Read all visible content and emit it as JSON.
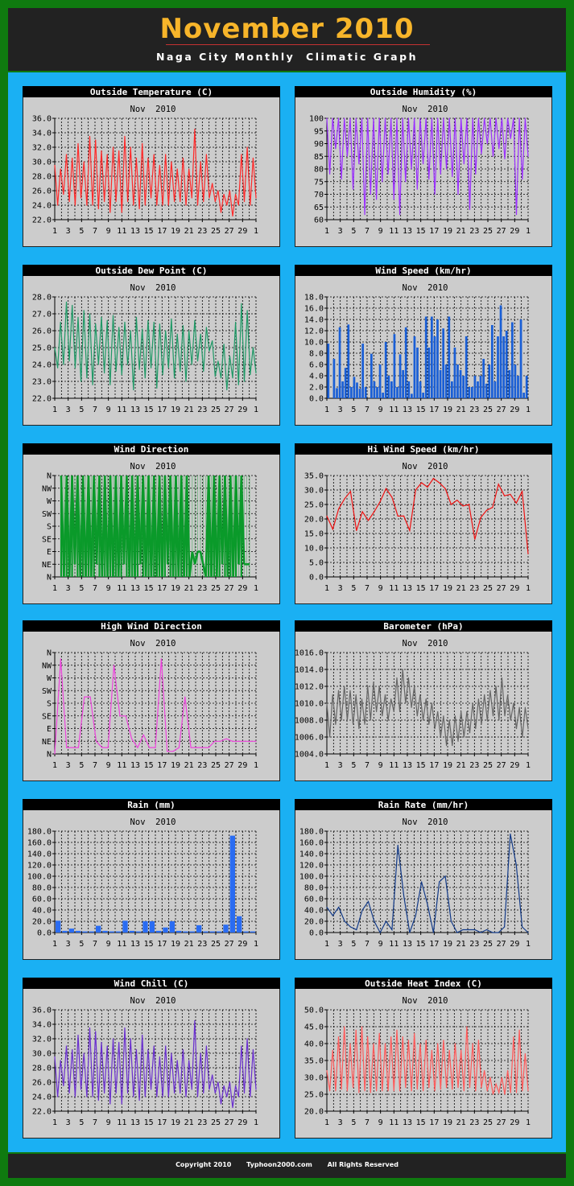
{
  "header": {
    "title": "November 2010",
    "subtitle": "Naga City Monthly  Climatic Graph"
  },
  "footer": {
    "copyright": "Copyright 2010",
    "site": "Typhoon2000.com",
    "rights": "All Rights Reserved"
  },
  "colors": {
    "background": "#0f7a0f",
    "panel_area": "#1ab0f3",
    "header_bg": "#222222",
    "title": "#f7b52a",
    "plot_bg": "#cccccc"
  },
  "chart_data": [
    {
      "id": "temperature",
      "type": "line",
      "title": "Outside Temperature (C)",
      "subtitle": "Nov  2010",
      "color": "#ff2a2a",
      "ylim": [
        22,
        36
      ],
      "ystep": 2,
      "ydec": 1,
      "xticks": [
        "1",
        "3",
        "5",
        "7",
        "9",
        "11",
        "13",
        "15",
        "17",
        "19",
        "21",
        "23",
        "25",
        "27",
        "29",
        "1"
      ],
      "values": [
        29.5,
        24,
        29,
        25.5,
        31,
        24.5,
        30.5,
        24,
        32.5,
        25,
        30,
        24,
        33.5,
        24,
        33,
        23.5,
        31.5,
        24.5,
        31,
        23,
        32,
        24.5,
        31.5,
        23,
        33.5,
        24.5,
        32,
        24,
        30.5,
        23.5,
        32.5,
        24,
        30.5,
        25,
        31,
        24,
        29.5,
        24,
        31,
        24,
        30,
        24.5,
        29,
        24.5,
        30.5,
        24,
        29,
        25,
        34.5,
        24,
        30,
        24.5,
        31,
        25,
        27,
        24.5,
        26,
        23,
        25.5,
        24,
        26,
        22.5,
        25.5,
        24,
        31,
        24.5,
        32,
        24,
        30.5,
        25
      ]
    },
    {
      "id": "humidity",
      "type": "line",
      "title": "Outside Humidity (%)",
      "subtitle": "Nov  2010",
      "color": "#9b30ff",
      "ylim": [
        60,
        100
      ],
      "ystep": 5,
      "ydec": 0,
      "xticks": [
        "1",
        "3",
        "5",
        "7",
        "9",
        "11",
        "13",
        "15",
        "17",
        "19",
        "21",
        "23",
        "25",
        "27",
        "29",
        "1"
      ],
      "values": [
        100,
        78,
        100,
        88,
        100,
        76,
        100,
        85,
        100,
        72,
        100,
        82,
        100,
        62,
        100,
        70,
        100,
        68,
        100,
        75,
        100,
        78,
        100,
        68,
        100,
        62,
        100,
        75,
        100,
        80,
        100,
        72,
        100,
        82,
        100,
        76,
        100,
        70,
        100,
        78,
        100,
        80,
        100,
        77,
        100,
        70,
        100,
        82,
        100,
        64,
        100,
        78,
        100,
        86,
        100,
        90,
        100,
        85,
        100,
        88,
        100,
        84,
        100,
        92,
        100,
        62,
        100,
        76,
        100,
        85
      ]
    },
    {
      "id": "dewpoint",
      "type": "line",
      "title": "Outside Dew Point (C)",
      "subtitle": "Nov  2010",
      "color": "#1f9966",
      "ylim": [
        22,
        28
      ],
      "ystep": 1,
      "ydec": 1,
      "xticks": [
        "1",
        "3",
        "5",
        "7",
        "9",
        "11",
        "13",
        "15",
        "17",
        "19",
        "21",
        "23",
        "25",
        "27",
        "29",
        "1"
      ],
      "values": [
        25,
        23.8,
        26.5,
        24,
        27.7,
        24.2,
        27.5,
        23.8,
        26.8,
        23,
        27.2,
        23.2,
        27,
        22.8,
        26.4,
        24,
        26.8,
        23.5,
        26.6,
        22.8,
        26.9,
        23.6,
        26.2,
        23.4,
        26.5,
        24,
        26,
        22.5,
        26.8,
        23.7,
        26.1,
        23.2,
        26.6,
        23.8,
        26.5,
        22.6,
        26.4,
        23.4,
        26,
        23.8,
        26.7,
        23.2,
        25.8,
        23.6,
        26.3,
        23,
        26,
        24,
        26.6,
        24.2,
        25.8,
        23.6,
        26.2,
        24.8,
        25.4,
        23.3,
        24.2,
        23.2,
        25.2,
        22.5,
        24.5,
        23.2,
        26.5,
        22.8,
        27.6,
        23,
        27.2,
        23.4,
        25,
        23.5
      ]
    },
    {
      "id": "windspeed",
      "type": "bar",
      "title": "Wind Speed (km/hr)",
      "subtitle": "Nov  2010",
      "color": "#1a5fd6",
      "ylim": [
        0,
        18
      ],
      "ystep": 2,
      "ydec": 1,
      "xticks": [
        "1",
        "3",
        "5",
        "7",
        "9",
        "11",
        "13",
        "15",
        "17",
        "19",
        "21",
        "23",
        "25",
        "27",
        "29",
        "1"
      ],
      "values": [
        9.7,
        0,
        7,
        1.8,
        12.6,
        3,
        5.4,
        13.1,
        2,
        3.8,
        2.8,
        1.7,
        9.7,
        2,
        0,
        7.9,
        3,
        2,
        6,
        1,
        10,
        4,
        3,
        11.4,
        2,
        7.8,
        5,
        12.6,
        3,
        0.8,
        11,
        9,
        3,
        1,
        14.5,
        9,
        14.5,
        11,
        14,
        5,
        12.4,
        6,
        14.5,
        3,
        9,
        6,
        5,
        4,
        11,
        2,
        2,
        4,
        3,
        4,
        7,
        2.6,
        6,
        13,
        3,
        11,
        16.5,
        11,
        12,
        5,
        13.5,
        6,
        4,
        14,
        1,
        4
      ]
    },
    {
      "id": "winddir",
      "type": "area",
      "title": "Wind Direction",
      "subtitle": "Nov  2010",
      "color": "#0a9a2a",
      "ylim": [
        0,
        8
      ],
      "yticklabels": [
        "N",
        "NE",
        "E",
        "SE",
        "S",
        "SW",
        "W",
        "NW",
        "N"
      ],
      "xticks": [
        "1",
        "3",
        "5",
        "7",
        "9",
        "11",
        "13",
        "15",
        "17",
        "19",
        "21",
        "23",
        "25",
        "27",
        "29",
        "1"
      ],
      "values": [
        8,
        0,
        8,
        0,
        8,
        1,
        8,
        0,
        8,
        0,
        8,
        0,
        8,
        1,
        8,
        0,
        8,
        0,
        8,
        0,
        8,
        0,
        8,
        1,
        8,
        0,
        8,
        0,
        8,
        1,
        8,
        0,
        8,
        0,
        8,
        0,
        8,
        0,
        8,
        1,
        8,
        0,
        8,
        0,
        8,
        0,
        8,
        0,
        2,
        1,
        2,
        2,
        1,
        0,
        8,
        0,
        8,
        0,
        8,
        1,
        8,
        0,
        8,
        0,
        8,
        1,
        8,
        1,
        1,
        1
      ],
      "end_index": 68
    },
    {
      "id": "hiwind",
      "type": "line",
      "title": "Hi Wind Speed (km/hr)",
      "subtitle": "Nov  2010",
      "color": "#ee1111",
      "ylim": [
        0,
        35
      ],
      "ystep": 5,
      "ydec": 1,
      "xticks": [
        "1",
        "3",
        "5",
        "7",
        "9",
        "11",
        "13",
        "15",
        "17",
        "19",
        "21",
        "23",
        "25",
        "27",
        "29",
        "1"
      ],
      "values": [
        21,
        16.5,
        23.5,
        27,
        29.5,
        16,
        22.5,
        19.5,
        22.5,
        26,
        30.5,
        27.5,
        21,
        21,
        16,
        30,
        32.5,
        31,
        34,
        32.5,
        30.5,
        25,
        26.5,
        24.5,
        25,
        13,
        20.5,
        23,
        24,
        32,
        28,
        28.5,
        25.5,
        29.5,
        8
      ]
    },
    {
      "id": "hiwinddir",
      "type": "line",
      "title": "High Wind Direction",
      "subtitle": "Nov  2010",
      "color": "#ee44dd",
      "ylim": [
        0,
        8
      ],
      "yticklabels": [
        "N",
        "NE",
        "E",
        "SE",
        "S",
        "SW",
        "W",
        "NW",
        "N"
      ],
      "xticks": [
        "1",
        "3",
        "5",
        "7",
        "9",
        "11",
        "13",
        "15",
        "17",
        "19",
        "21",
        "23",
        "25",
        "27",
        "29",
        "1"
      ],
      "values": [
        0,
        7.5,
        0.5,
        0.5,
        0.5,
        4.5,
        4.5,
        1,
        0.5,
        0.5,
        7,
        3,
        3,
        1.2,
        0.5,
        1.5,
        0.5,
        0.5,
        7.5,
        0.2,
        0.2,
        0.5,
        4.5,
        0.5,
        0.5,
        0.5,
        0.5,
        1,
        1,
        1.2,
        1,
        1,
        1,
        1,
        1
      ]
    },
    {
      "id": "barometer",
      "type": "line",
      "title": "Barometer (hPa)",
      "subtitle": "Nov  2010",
      "color": "#666666",
      "ylim": [
        1004,
        1016
      ],
      "ystep": 2,
      "ydec": 1,
      "xticks": [
        "1",
        "3",
        "5",
        "7",
        "9",
        "11",
        "13",
        "15",
        "17",
        "19",
        "21",
        "23",
        "25",
        "27",
        "29",
        "1"
      ],
      "values": [
        1010,
        1006,
        1011,
        1007.5,
        1011.5,
        1008,
        1012,
        1008,
        1011.5,
        1007.5,
        1011,
        1007,
        1010.5,
        1007.5,
        1012,
        1008,
        1012.5,
        1009,
        1012,
        1008.5,
        1011,
        1008,
        1010.5,
        1009,
        1013,
        1009,
        1014,
        1010,
        1013,
        1009.5,
        1012,
        1008.5,
        1011,
        1008,
        1010.5,
        1007.5,
        1010,
        1007,
        1009,
        1006,
        1008.5,
        1005,
        1008,
        1005,
        1008.5,
        1005.5,
        1009,
        1006,
        1009,
        1006.5,
        1010,
        1007,
        1010.5,
        1007.5,
        1011,
        1008,
        1011.5,
        1008.5,
        1012,
        1008,
        1013,
        1008.5,
        1011,
        1008,
        1010,
        1007,
        1009.5,
        1006,
        1009.5,
        1007
      ]
    },
    {
      "id": "rain",
      "type": "bar",
      "title": "Rain (mm)",
      "subtitle": "Nov  2010",
      "color": "#2a6cf2",
      "ylim": [
        0,
        180
      ],
      "ystep": 20,
      "ydec": 1,
      "xticks": [
        "1",
        "3",
        "5",
        "7",
        "9",
        "11",
        "13",
        "15",
        "17",
        "19",
        "21",
        "23",
        "25",
        "27",
        "29",
        "1"
      ],
      "values": [
        21,
        3,
        7,
        3,
        2,
        2,
        12,
        3,
        2,
        2,
        21,
        3,
        2,
        20,
        20,
        3,
        9,
        20,
        3,
        2,
        2,
        13,
        2,
        2,
        2,
        14,
        172,
        29,
        2,
        2
      ]
    },
    {
      "id": "rainrate",
      "type": "line",
      "title": "Rain Rate (mm/hr)",
      "subtitle": "Nov  2010",
      "color": "#123a88",
      "ylim": [
        0,
        180
      ],
      "ystep": 20,
      "ydec": 1,
      "xticks": [
        "1",
        "3",
        "5",
        "7",
        "9",
        "11",
        "13",
        "15",
        "17",
        "19",
        "21",
        "23",
        "25",
        "27",
        "29",
        "1"
      ],
      "values": [
        45,
        30,
        45,
        20,
        10,
        5,
        40,
        55,
        20,
        0,
        20,
        5,
        155,
        65,
        0,
        30,
        90,
        50,
        0,
        90,
        100,
        20,
        0,
        5,
        5,
        5,
        0,
        5,
        0,
        0,
        10,
        175,
        120,
        10,
        0
      ]
    },
    {
      "id": "windchill",
      "type": "line",
      "title": "Wind Chill (C)",
      "subtitle": "Nov  2010",
      "color": "#6a2fcf",
      "ylim": [
        22,
        36
      ],
      "ystep": 2,
      "ydec": 1,
      "xticks": [
        "1",
        "3",
        "5",
        "7",
        "9",
        "11",
        "13",
        "15",
        "17",
        "19",
        "21",
        "23",
        "25",
        "27",
        "29",
        "1"
      ],
      "values": [
        29.5,
        24,
        29,
        25.5,
        31,
        24.5,
        30.5,
        24,
        32.5,
        25,
        30,
        24,
        33.5,
        24,
        33,
        23.5,
        31.5,
        24.5,
        31,
        23,
        32,
        24.5,
        31.5,
        23,
        33.5,
        24.5,
        32,
        24,
        30.5,
        23.5,
        32.5,
        24,
        30.5,
        25,
        31,
        24,
        29.5,
        24,
        31,
        24,
        30,
        24.5,
        29,
        24.5,
        30.5,
        24,
        29,
        25,
        34.5,
        24,
        30,
        24.5,
        31,
        25,
        27,
        24.5,
        26,
        23,
        25.5,
        24,
        26,
        22.5,
        25.5,
        24,
        31,
        24.5,
        32,
        24,
        30.5,
        25
      ]
    },
    {
      "id": "heatindex",
      "type": "line",
      "title": "Outside Heat Index (C)",
      "subtitle": "Nov  2010",
      "color": "#ff5a5a",
      "ylim": [
        20,
        50
      ],
      "ystep": 5,
      "ydec": 1,
      "xticks": [
        "1",
        "3",
        "5",
        "7",
        "9",
        "11",
        "13",
        "15",
        "17",
        "19",
        "21",
        "23",
        "25",
        "27",
        "29",
        "1"
      ],
      "values": [
        32,
        26,
        38,
        26,
        42,
        26.5,
        45,
        26,
        40,
        27,
        44,
        25.5,
        45,
        26,
        42,
        25.5,
        40,
        26,
        43,
        26,
        40,
        26,
        42,
        26,
        44,
        26,
        42,
        27,
        41,
        26,
        43,
        26.5,
        40,
        26,
        41,
        27,
        38,
        26,
        40,
        26.5,
        41,
        27,
        38,
        26.5,
        40,
        27,
        38,
        26,
        45,
        27,
        40,
        26,
        41,
        27,
        32,
        26,
        30,
        25,
        28,
        25.5,
        30,
        25,
        32,
        25.5,
        42,
        25.5,
        44,
        26,
        37,
        26
      ]
    }
  ]
}
